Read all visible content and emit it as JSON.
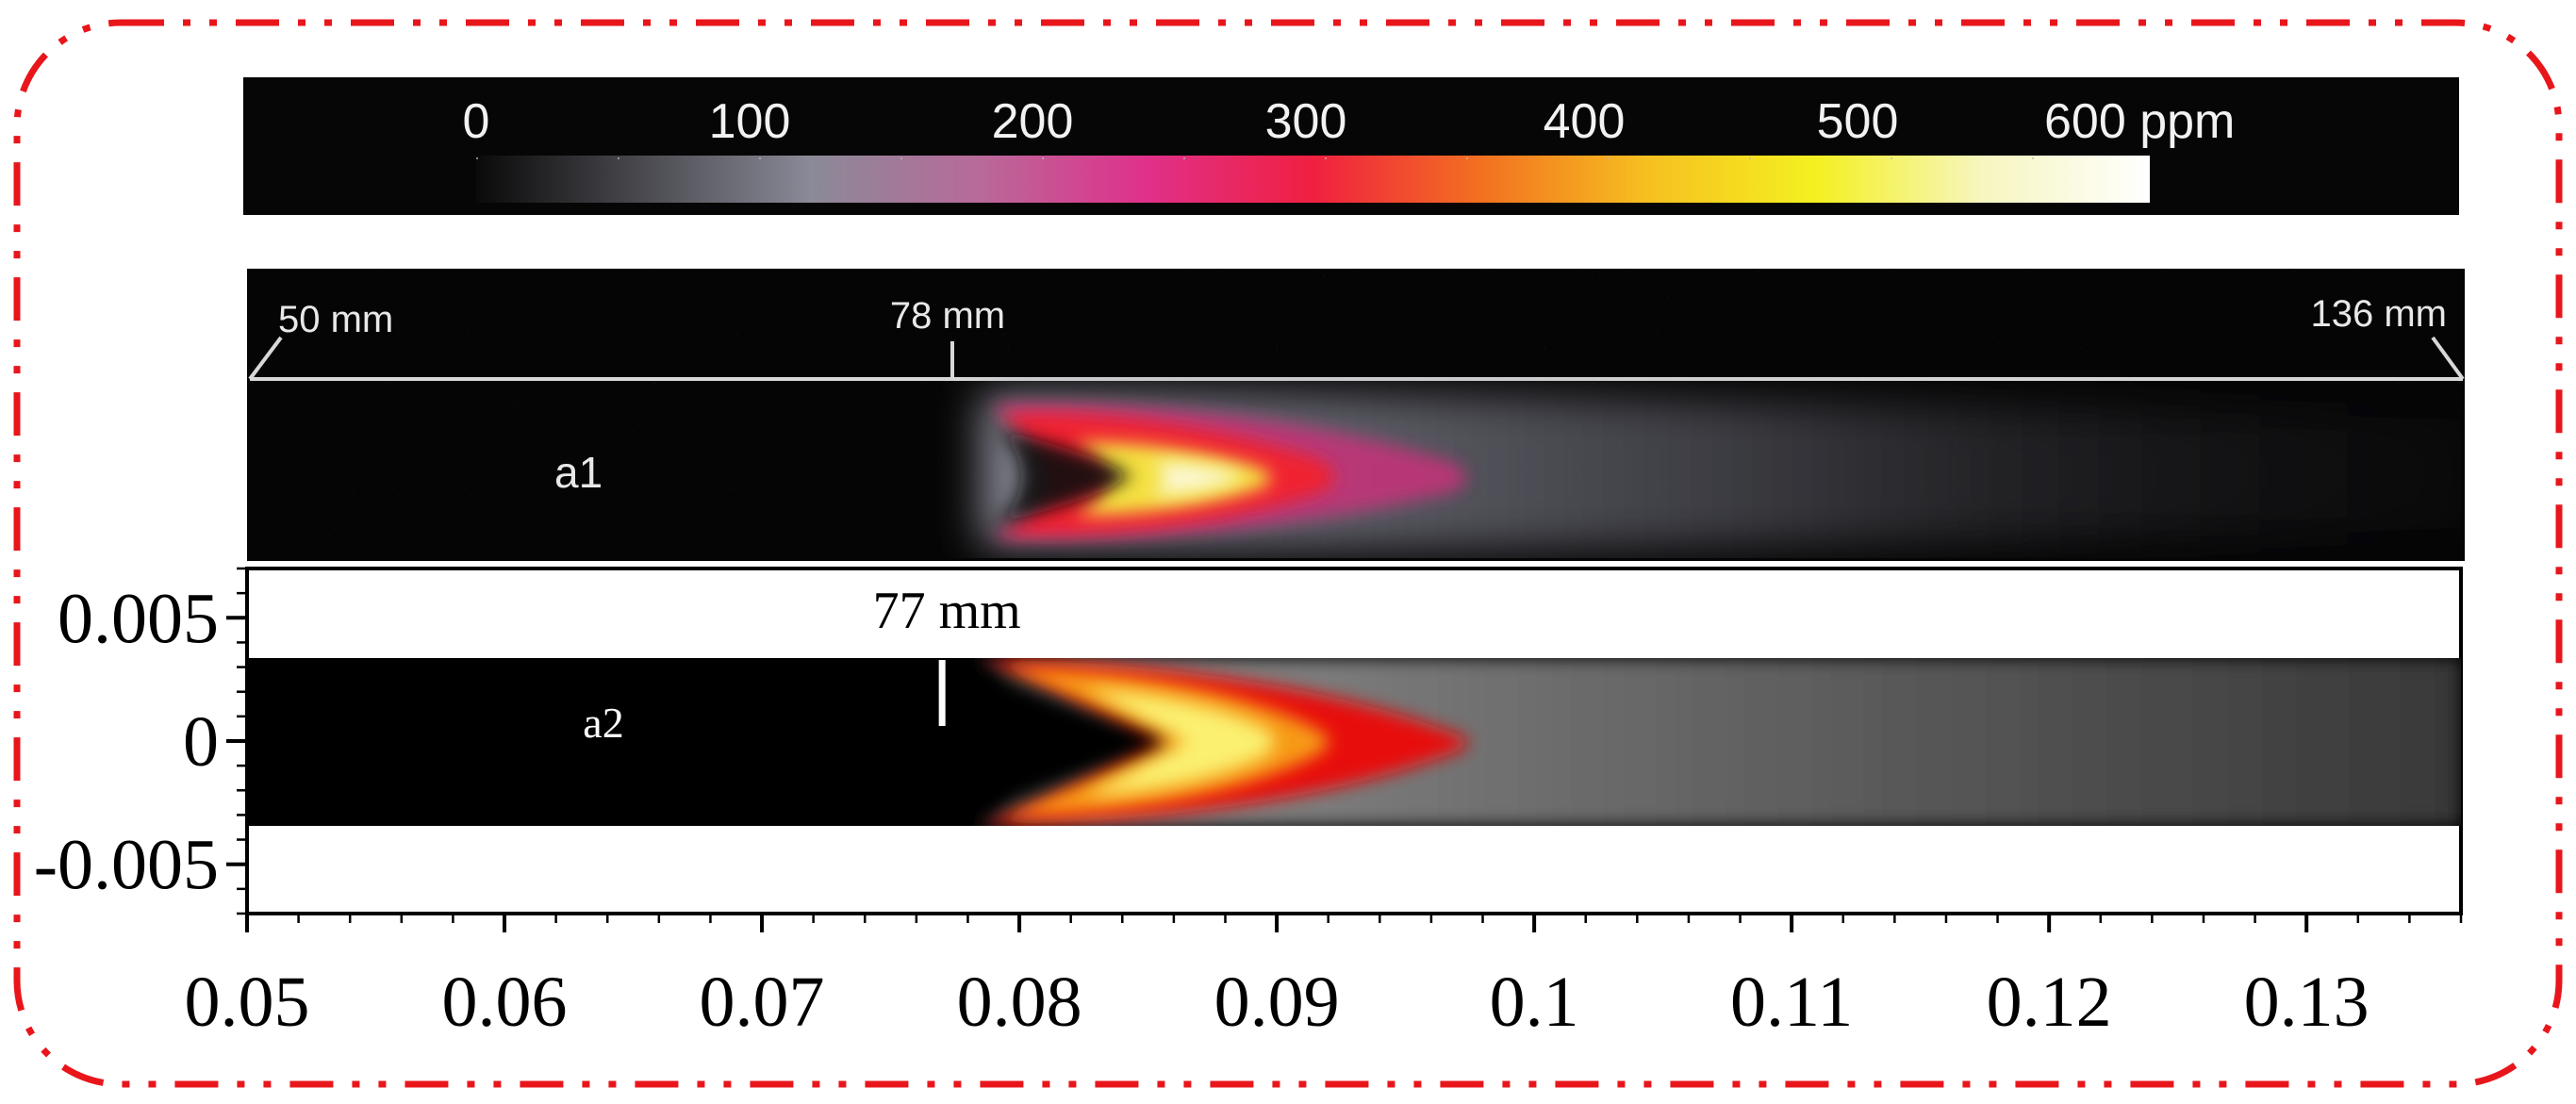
{
  "colorbar": {
    "tick_labels": [
      "0",
      "100",
      "200",
      "300",
      "400",
      "500",
      "600 ppm"
    ],
    "gradient_colors": [
      "#0a0a0a",
      "#4a4a50",
      "#8a8a98",
      "#b86a9a",
      "#e0308a",
      "#f02040",
      "#f27020",
      "#f6c020",
      "#f4f020",
      "#f6f6c0",
      "#ffffff"
    ]
  },
  "panel_a1": {
    "label": "a1",
    "scale_labels": {
      "start": "50 mm",
      "mark": "78 mm",
      "end": "136 mm"
    }
  },
  "panel_a2": {
    "label": "a2",
    "marker_label": "77 mm",
    "y_tick_labels": [
      "0.005",
      "0",
      "-0.005"
    ],
    "x_tick_labels": [
      "0.05",
      "0.06",
      "0.07",
      "0.08",
      "0.09",
      "0.1",
      "0.11",
      "0.12",
      "0.13"
    ]
  },
  "chart_data": {
    "type": "heatmap",
    "x_range": [
      0.05,
      0.136
    ],
    "y_range": [
      -0.007,
      0.007
    ],
    "x_ticks": [
      0.05,
      0.06,
      0.07,
      0.08,
      0.09,
      0.1,
      0.11,
      0.12,
      0.13
    ],
    "y_ticks": [
      0.005,
      0,
      -0.005
    ],
    "channel_y_range": [
      -0.0034,
      0.0034
    ],
    "marker_x": 0.077,
    "color_scale_range": [
      0,
      600
    ],
    "flame_front_tip_x": 0.086
  },
  "border": {
    "color": "#e8161b",
    "style": "dash-dot"
  }
}
